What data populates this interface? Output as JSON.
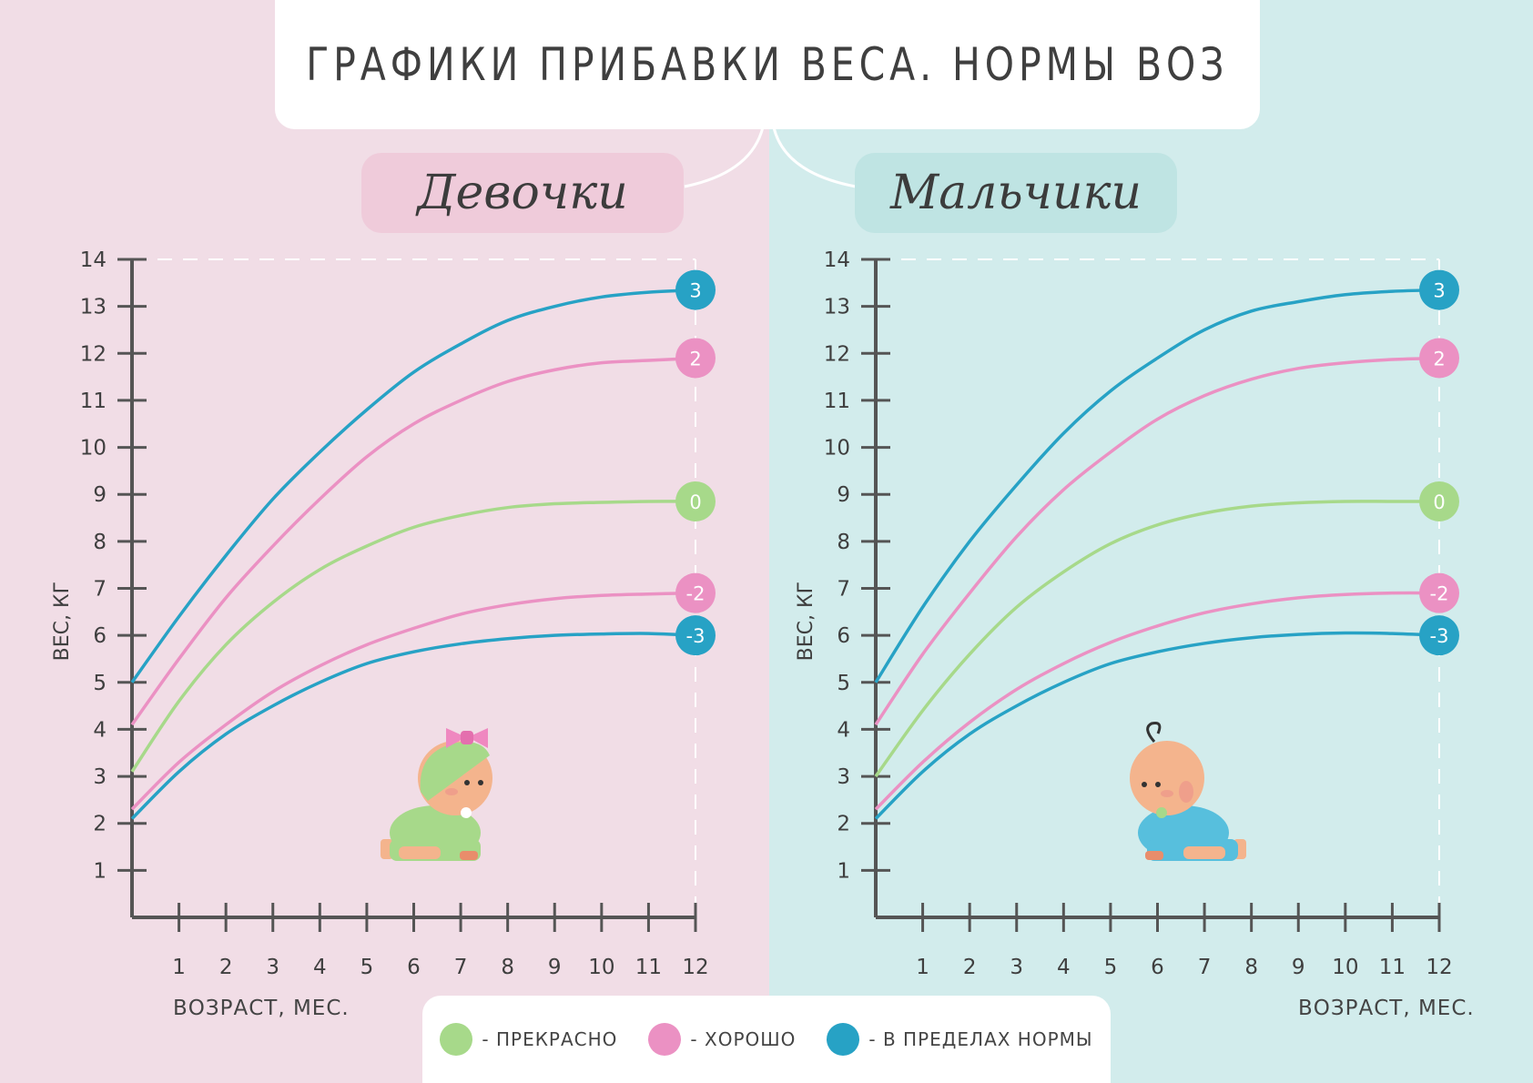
{
  "title": "ГРАФИКИ ПРИБАВКИ ВЕСА. НОРМЫ ВОЗ",
  "colors": {
    "green": "#a7d98a",
    "pink": "#eb91c3",
    "blue": "#27a2c5",
    "axis": "#555555",
    "bg_girls": "#f1dde6",
    "bg_boys": "#d2ecec"
  },
  "legend": [
    {
      "color": "#a7d98a",
      "label": "- ПРЕКРАСНО"
    },
    {
      "color": "#eb91c3",
      "label": "- ХОРОШО"
    },
    {
      "color": "#27a2c5",
      "label": "- В ПРЕДЕЛАХ НОРМЫ"
    }
  ],
  "chart_data": [
    {
      "type": "line",
      "title": "Девочки",
      "xlabel": "ВОЗРАСТ, МЕС.",
      "ylabel": "ВЕС, КГ",
      "xlim": [
        0,
        12
      ],
      "ylim": [
        0,
        14
      ],
      "x_ticks": [
        1,
        2,
        3,
        4,
        5,
        6,
        7,
        8,
        9,
        10,
        11,
        12
      ],
      "y_ticks": [
        1,
        2,
        3,
        4,
        5,
        6,
        7,
        8,
        9,
        10,
        11,
        12,
        13,
        14
      ],
      "x": [
        0,
        1,
        2,
        3,
        4,
        5,
        6,
        7,
        8,
        9,
        10,
        11,
        12
      ],
      "series": [
        {
          "name": "3",
          "color": "#27a2c5",
          "values": [
            5.0,
            6.4,
            7.7,
            8.9,
            9.9,
            10.8,
            11.6,
            12.2,
            12.7,
            13.0,
            13.2,
            13.3,
            13.35
          ]
        },
        {
          "name": "2",
          "color": "#eb91c3",
          "values": [
            4.1,
            5.5,
            6.8,
            7.9,
            8.9,
            9.8,
            10.5,
            11.0,
            11.4,
            11.65,
            11.8,
            11.85,
            11.9
          ]
        },
        {
          "name": "0",
          "color": "#a7d98a",
          "values": [
            3.1,
            4.6,
            5.8,
            6.7,
            7.4,
            7.9,
            8.3,
            8.55,
            8.72,
            8.8,
            8.83,
            8.85,
            8.85
          ]
        },
        {
          "name": "-2",
          "color": "#eb91c3",
          "values": [
            2.3,
            3.3,
            4.1,
            4.8,
            5.35,
            5.8,
            6.15,
            6.45,
            6.65,
            6.78,
            6.85,
            6.88,
            6.9
          ]
        },
        {
          "name": "-3",
          "color": "#27a2c5",
          "values": [
            2.1,
            3.1,
            3.9,
            4.5,
            5.0,
            5.4,
            5.65,
            5.82,
            5.93,
            6.0,
            6.03,
            6.04,
            6.0
          ]
        }
      ]
    },
    {
      "type": "line",
      "title": "Мальчики",
      "xlabel": "ВОЗРАСТ, МЕС.",
      "ylabel": "ВЕС, КГ",
      "xlim": [
        0,
        12
      ],
      "ylim": [
        0,
        14
      ],
      "x_ticks": [
        1,
        2,
        3,
        4,
        5,
        6,
        7,
        8,
        9,
        10,
        11,
        12
      ],
      "y_ticks": [
        1,
        2,
        3,
        4,
        5,
        6,
        7,
        8,
        9,
        10,
        11,
        12,
        13,
        14
      ],
      "x": [
        0,
        1,
        2,
        3,
        4,
        5,
        6,
        7,
        8,
        9,
        10,
        11,
        12
      ],
      "series": [
        {
          "name": "3",
          "color": "#27a2c5",
          "values": [
            5.0,
            6.6,
            8.0,
            9.2,
            10.3,
            11.2,
            11.9,
            12.5,
            12.9,
            13.1,
            13.25,
            13.32,
            13.35
          ]
        },
        {
          "name": "2",
          "color": "#eb91c3",
          "values": [
            4.1,
            5.6,
            6.9,
            8.1,
            9.1,
            9.9,
            10.6,
            11.1,
            11.45,
            11.68,
            11.8,
            11.87,
            11.9
          ]
        },
        {
          "name": "0",
          "color": "#a7d98a",
          "values": [
            3.0,
            4.4,
            5.6,
            6.6,
            7.35,
            7.95,
            8.35,
            8.6,
            8.75,
            8.82,
            8.85,
            8.85,
            8.85
          ]
        },
        {
          "name": "-2",
          "color": "#eb91c3",
          "values": [
            2.3,
            3.3,
            4.15,
            4.85,
            5.4,
            5.85,
            6.2,
            6.48,
            6.67,
            6.8,
            6.87,
            6.9,
            6.9
          ]
        },
        {
          "name": "-3",
          "color": "#27a2c5",
          "values": [
            2.1,
            3.1,
            3.9,
            4.5,
            5.0,
            5.4,
            5.65,
            5.83,
            5.95,
            6.02,
            6.05,
            6.04,
            6.0
          ]
        }
      ]
    }
  ]
}
